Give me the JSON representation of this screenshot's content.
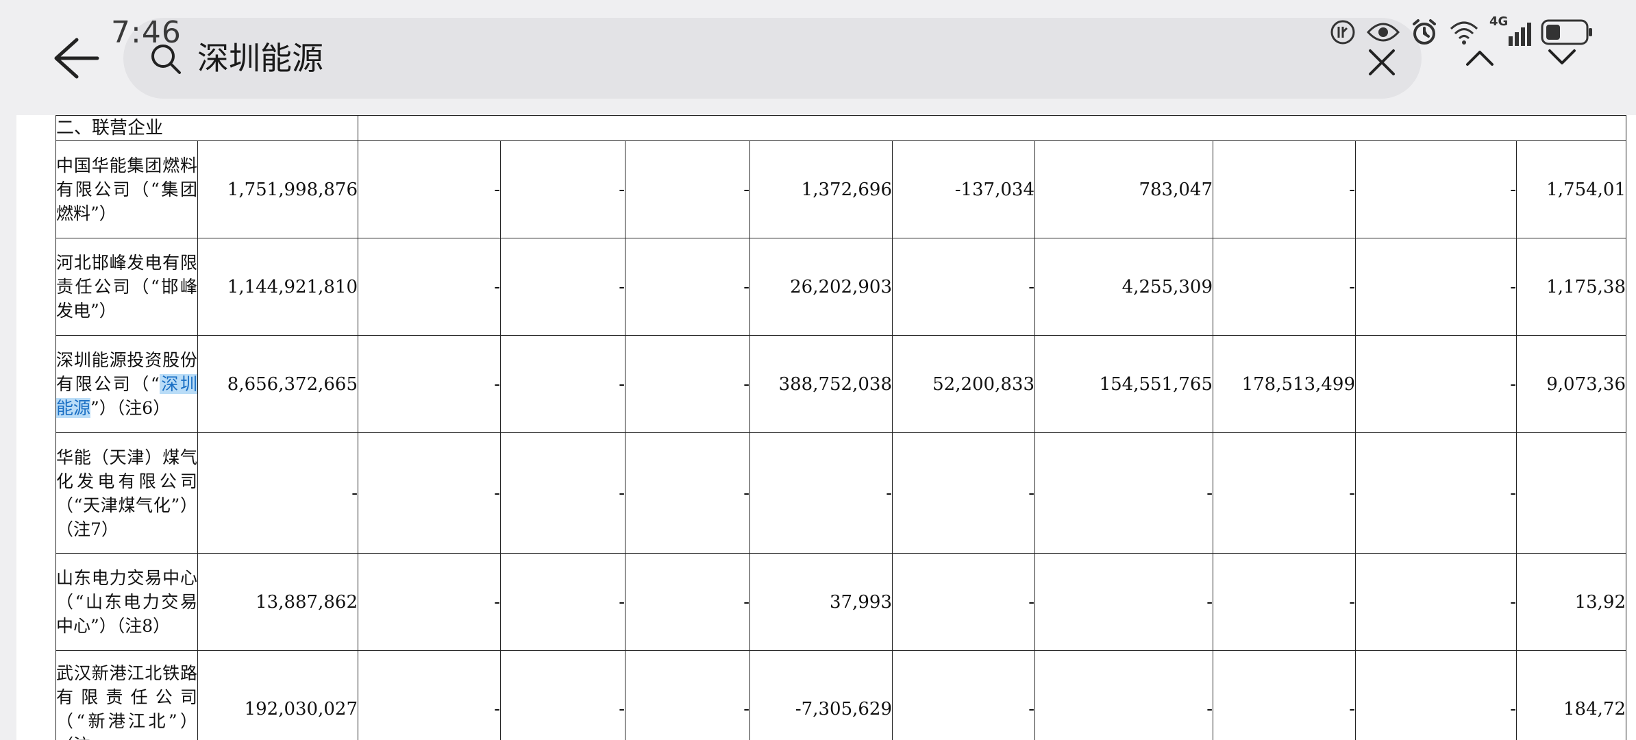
{
  "status": {
    "time": "7:46",
    "network": "4G",
    "icons": [
      "nfc-icon",
      "eye-comfort-icon",
      "alarm-icon",
      "wifi-icon",
      "signal-icon",
      "battery-icon"
    ]
  },
  "search": {
    "query": "深圳能源"
  },
  "table": {
    "section_label": "二、联营企业",
    "rows": [
      {
        "name_before": "中国华能集团燃料有限公司（“集团燃料”）",
        "name_hl": "",
        "name_after": "",
        "values": [
          "1,751,998,876",
          "-",
          "-",
          "-",
          "1,372,696",
          "-137,034",
          "783,047",
          "-",
          "-",
          "1,754,01"
        ]
      },
      {
        "name_before": "河北邯峰发电有限责任公司（“邯峰发电”）",
        "name_hl": "",
        "name_after": "",
        "values": [
          "1,144,921,810",
          "-",
          "-",
          "-",
          "26,202,903",
          "-",
          "4,255,309",
          "-",
          "-",
          "1,175,38"
        ]
      },
      {
        "name_before": "深圳能源投资股份有限公司（“",
        "name_hl": "深圳能源",
        "name_after": "”）（注6）",
        "values": [
          "8,656,372,665",
          "-",
          "-",
          "-",
          "388,752,038",
          "52,200,833",
          "154,551,765",
          "178,513,499",
          "-",
          "9,073,36"
        ]
      },
      {
        "name_before": "华能（天津）煤气化发电有限公司（“天津煤气化”）（注7）",
        "name_hl": "",
        "name_after": "",
        "values": [
          "-",
          "-",
          "-",
          "-",
          "-",
          "-",
          "-",
          "-",
          "-",
          ""
        ]
      },
      {
        "name_before": "山东电力交易中心（“山东电力交易中心”）（注8）",
        "name_hl": "",
        "name_after": "",
        "values": [
          "13,887,862",
          "-",
          "-",
          "-",
          "37,993",
          "-",
          "-",
          "-",
          "-",
          "13,92"
        ]
      },
      {
        "name_before": "武汉新港江北铁路有限责任公司（“新港江北”）（注",
        "name_hl": "",
        "name_after": "",
        "values": [
          "192,030,027",
          "-",
          "-",
          "-",
          "-7,305,629",
          "-",
          "-",
          "-",
          "-",
          "184,72"
        ]
      }
    ]
  }
}
